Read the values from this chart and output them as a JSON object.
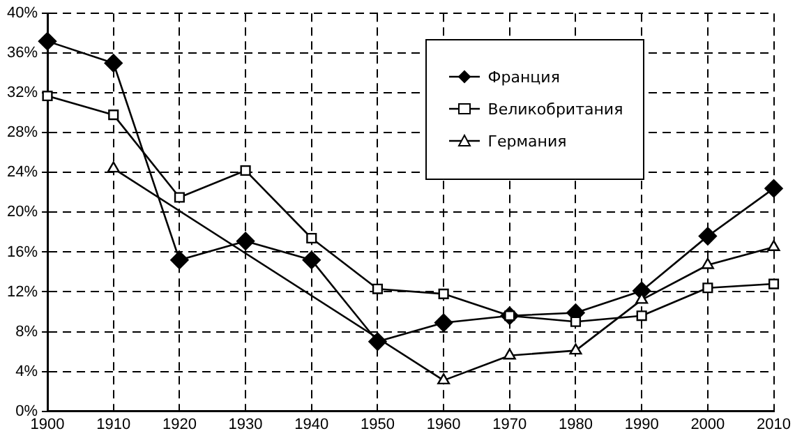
{
  "chart_data": {
    "type": "line",
    "categories": [
      "1900",
      "1910",
      "1920",
      "1930",
      "1940",
      "1950",
      "1960",
      "1970",
      "1980",
      "1990",
      "2000",
      "2010"
    ],
    "series": [
      {
        "name": "Франция",
        "color": "#000000",
        "marker": "diamond",
        "values": [
          37.2,
          35.0,
          15.2,
          17.1,
          15.2,
          7.0,
          8.9,
          9.6,
          9.9,
          12.1,
          17.6,
          22.4
        ]
      },
      {
        "name": "Великобритания",
        "color": "#000000",
        "marker": "square",
        "values": [
          31.7,
          29.8,
          21.5,
          24.2,
          17.4,
          12.3,
          11.8,
          9.6,
          9.0,
          9.6,
          12.4,
          12.8
        ]
      },
      {
        "name": "Германия",
        "color": "#000000",
        "marker": "triangle",
        "values": [
          null,
          24.4,
          null,
          null,
          null,
          null,
          3.1,
          5.6,
          6.1,
          11.2,
          14.7,
          16.5
        ]
      }
    ],
    "ylim": [
      0,
      40
    ],
    "yticks": [
      {
        "value": 0,
        "label": "0%"
      },
      {
        "value": 4,
        "label": "4%"
      },
      {
        "value": 8,
        "label": "8%"
      },
      {
        "value": 12,
        "label": "12%"
      },
      {
        "value": 16,
        "label": "16%"
      },
      {
        "value": 20,
        "label": "20%"
      },
      {
        "value": 24,
        "label": "24%"
      },
      {
        "value": 28,
        "label": "28%"
      },
      {
        "value": 32,
        "label": "32%"
      },
      {
        "value": 36,
        "label": "36%"
      },
      {
        "value": 40,
        "label": "40%"
      }
    ],
    "grid": true,
    "line_style": "solid",
    "legend": "top right"
  }
}
